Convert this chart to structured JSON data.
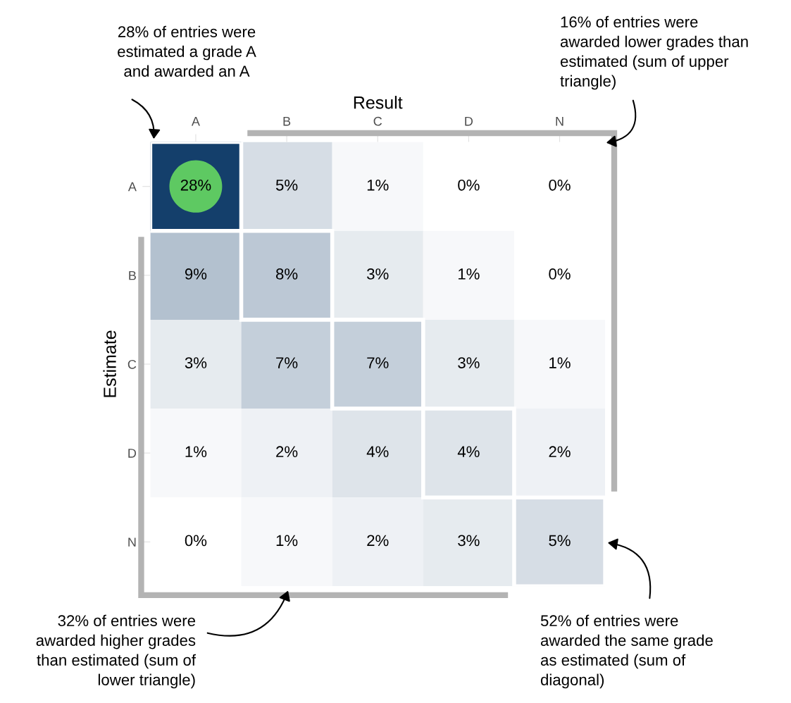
{
  "chart_data": {
    "type": "heatmap",
    "xlabel": "Result",
    "ylabel": "Estimate",
    "categories": [
      "A",
      "B",
      "C",
      "D",
      "N"
    ],
    "y_categories": [
      "A",
      "B",
      "C",
      "D",
      "N"
    ],
    "cells": [
      [
        28,
        5,
        1,
        0,
        0
      ],
      [
        9,
        8,
        3,
        1,
        0
      ],
      [
        3,
        7,
        7,
        3,
        1
      ],
      [
        1,
        2,
        4,
        4,
        2
      ],
      [
        0,
        1,
        2,
        3,
        5
      ]
    ],
    "cell_labels": [
      [
        "28%",
        "5%",
        "1%",
        "0%",
        "0%"
      ],
      [
        "9%",
        "8%",
        "3%",
        "1%",
        "0%"
      ],
      [
        "3%",
        "7%",
        "7%",
        "3%",
        "1%"
      ],
      [
        "1%",
        "2%",
        "4%",
        "4%",
        "2%"
      ],
      [
        "0%",
        "1%",
        "2%",
        "3%",
        "5%"
      ]
    ],
    "annotations": [
      "28% of entries were\nestimated a grade A\nand awarded an A",
      "16% of entries were\nawarded lower grades than\nestimated (sum of upper\ntriangle)",
      "32% of entries were\nawarded higher grades\nthan estimated (sum of\nlower triangle)",
      "52% of entries were\nawarded the same grade\nas estimated (sum of\ndiagonal)"
    ]
  }
}
